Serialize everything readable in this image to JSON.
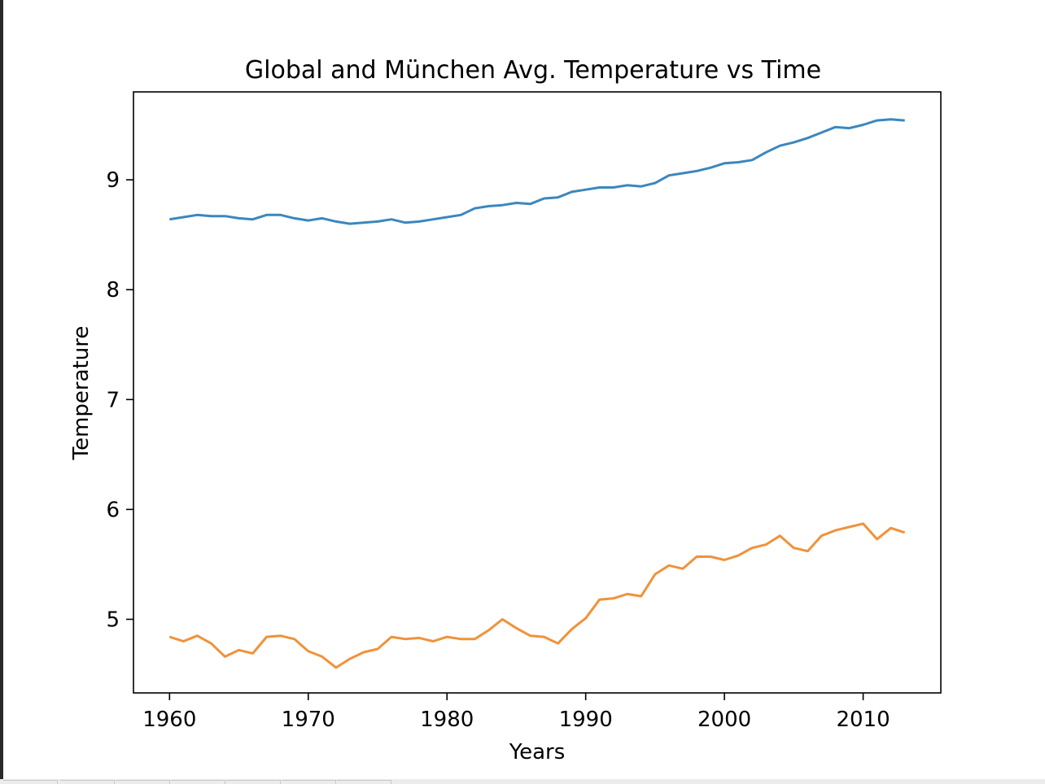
{
  "chart_data": {
    "type": "line",
    "title": "Global and München Avg. Temperature vs Time",
    "xlabel": "Years",
    "ylabel": "Temperature",
    "xlim": [
      1957.4,
      2015.6
    ],
    "ylim": [
      4.33,
      9.8
    ],
    "xticks": [
      1960,
      1970,
      1980,
      1990,
      2000,
      2010
    ],
    "yticks": [
      5,
      6,
      7,
      8,
      9
    ],
    "grid": false,
    "legend": "none",
    "x": [
      1960,
      1961,
      1962,
      1963,
      1964,
      1965,
      1966,
      1967,
      1968,
      1969,
      1970,
      1971,
      1972,
      1973,
      1974,
      1975,
      1976,
      1977,
      1978,
      1979,
      1980,
      1981,
      1982,
      1983,
      1984,
      1985,
      1986,
      1987,
      1988,
      1989,
      1990,
      1991,
      1992,
      1993,
      1994,
      1995,
      1996,
      1997,
      1998,
      1999,
      2000,
      2001,
      2002,
      2003,
      2004,
      2005,
      2006,
      2007,
      2008,
      2009,
      2010,
      2011,
      2012,
      2013
    ],
    "series": [
      {
        "color": "#3b87be",
        "values": [
          8.64,
          8.66,
          8.68,
          8.67,
          8.67,
          8.65,
          8.64,
          8.68,
          8.68,
          8.65,
          8.63,
          8.65,
          8.62,
          8.6,
          8.61,
          8.62,
          8.64,
          8.61,
          8.62,
          8.64,
          8.66,
          8.68,
          8.74,
          8.76,
          8.77,
          8.79,
          8.78,
          8.83,
          8.84,
          8.89,
          8.91,
          8.93,
          8.93,
          8.95,
          8.94,
          8.97,
          9.04,
          9.06,
          9.08,
          9.11,
          9.15,
          9.16,
          9.18,
          9.25,
          9.31,
          9.34,
          9.38,
          9.43,
          9.48,
          9.47,
          9.5,
          9.54,
          9.55,
          9.54
        ]
      },
      {
        "color": "#f0923a",
        "values": [
          4.84,
          4.8,
          4.85,
          4.78,
          4.66,
          4.72,
          4.69,
          4.84,
          4.85,
          4.82,
          4.71,
          4.66,
          4.56,
          4.64,
          4.7,
          4.73,
          4.84,
          4.82,
          4.83,
          4.8,
          4.84,
          4.82,
          4.82,
          4.9,
          5.0,
          4.92,
          4.85,
          4.84,
          4.78,
          4.91,
          5.01,
          5.18,
          5.19,
          5.23,
          5.21,
          5.41,
          5.49,
          5.46,
          5.57,
          5.57,
          5.54,
          5.58,
          5.65,
          5.68,
          5.76,
          5.65,
          5.62,
          5.76,
          5.81,
          5.84,
          5.87,
          5.73,
          5.83,
          5.79
        ]
      }
    ]
  }
}
